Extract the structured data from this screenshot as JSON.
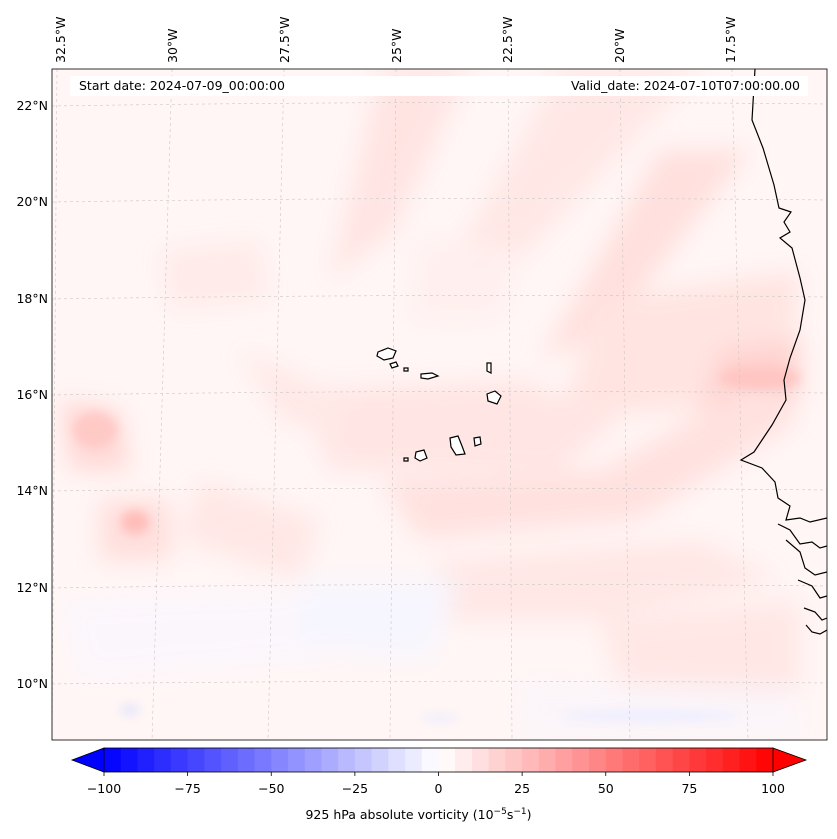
{
  "header": {
    "start_date": "Start date: 2024-07-09_00:00:00",
    "valid_date": "Valid_date: 2024-07-10T07:00:00.00"
  },
  "axes": {
    "lon_labels": [
      "32.5°W",
      "30°W",
      "27.5°W",
      "25°W",
      "22.5°W",
      "20°W",
      "17.5°W"
    ],
    "lat_labels": [
      "22°N",
      "20°N",
      "18°N",
      "16°N",
      "14°N",
      "12°N",
      "10°N"
    ]
  },
  "colorbar": {
    "ticks": [
      "−100",
      "−75",
      "−50",
      "−25",
      "0",
      "25",
      "50",
      "75",
      "100"
    ],
    "label_text": "925 hPa absolute vorticity (10",
    "label_exp1": "−5",
    "label_mid": "s",
    "label_exp2": "−1",
    "label_end": ")",
    "min_color": "#0000ff",
    "mid_color": "#ffffff",
    "max_color": "#ff0000"
  }
}
